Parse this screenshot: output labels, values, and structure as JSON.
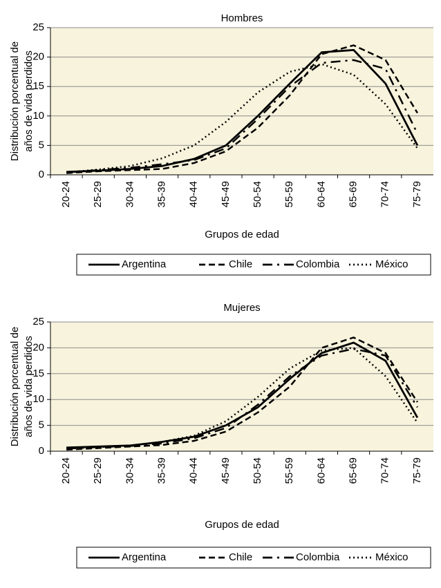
{
  "chart_data": [
    {
      "type": "line",
      "title": "Hombres",
      "ylabel": [
        "Distribución porcentual de",
        "años de vida perdidos"
      ],
      "xlabel": "Grupos de edad",
      "categories": [
        "20-24",
        "25-29",
        "30-34",
        "35-39",
        "40-44",
        "45-49",
        "50-54",
        "55-59",
        "60-64",
        "65-69",
        "70-74",
        "75-79"
      ],
      "ylim": [
        0,
        25
      ],
      "yticks": [
        0,
        5,
        10,
        15,
        20,
        25
      ],
      "grid": true,
      "series": [
        {
          "name": "Argentina",
          "color": "#000000",
          "dash": "solid",
          "values": [
            0.5,
            0.7,
            1.0,
            1.5,
            2.7,
            5.0,
            10.0,
            15.5,
            20.8,
            21.2,
            15.5,
            5.0
          ]
        },
        {
          "name": "Chile",
          "color": "#000000",
          "dash": "dash",
          "values": [
            0.3,
            0.6,
            0.8,
            1.0,
            2.0,
            4.0,
            8.0,
            13.5,
            20.5,
            22.0,
            19.5,
            10.5
          ]
        },
        {
          "name": "Colombia",
          "color": "#000000",
          "dash": "dashdot",
          "values": [
            0.4,
            0.8,
            1.2,
            1.8,
            2.5,
            4.5,
            9.5,
            15.0,
            19.0,
            19.5,
            18.0,
            7.0
          ]
        },
        {
          "name": "México",
          "color": "#000000",
          "dash": "dot",
          "values": [
            0.4,
            0.9,
            1.5,
            2.8,
            5.0,
            9.0,
            14.0,
            17.5,
            18.8,
            17.0,
            12.0,
            4.5
          ]
        }
      ]
    },
    {
      "type": "line",
      "title": "Mujeres",
      "ylabel": [
        "Distribución porcentual de",
        "años de vida perdidos"
      ],
      "xlabel": "Grupos de edad",
      "categories": [
        "20-24",
        "25-29",
        "30-34",
        "35-39",
        "40-44",
        "45-49",
        "50-54",
        "55-59",
        "60-64",
        "65-69",
        "70-74",
        "75-79"
      ],
      "ylim": [
        0,
        25
      ],
      "yticks": [
        0,
        5,
        10,
        15,
        20,
        25
      ],
      "grid": true,
      "series": [
        {
          "name": "Argentina",
          "color": "#000000",
          "dash": "solid",
          "values": [
            0.7,
            0.9,
            1.1,
            1.8,
            2.8,
            5.0,
            8.5,
            14.0,
            19.0,
            21.0,
            17.5,
            6.5
          ]
        },
        {
          "name": "Chile",
          "color": "#000000",
          "dash": "dash",
          "values": [
            0.3,
            0.6,
            0.9,
            1.2,
            2.0,
            3.8,
            7.5,
            12.5,
            20.0,
            22.0,
            19.0,
            9.5
          ]
        },
        {
          "name": "Colombia",
          "color": "#000000",
          "dash": "dashdot",
          "values": [
            0.5,
            0.8,
            1.0,
            1.5,
            2.5,
            4.5,
            9.0,
            14.5,
            18.5,
            19.8,
            18.5,
            8.5
          ]
        },
        {
          "name": "México",
          "color": "#000000",
          "dash": "dot",
          "values": [
            0.5,
            0.8,
            1.1,
            1.8,
            3.0,
            5.8,
            10.5,
            16.0,
            19.5,
            20.0,
            14.5,
            5.5
          ]
        }
      ]
    }
  ]
}
